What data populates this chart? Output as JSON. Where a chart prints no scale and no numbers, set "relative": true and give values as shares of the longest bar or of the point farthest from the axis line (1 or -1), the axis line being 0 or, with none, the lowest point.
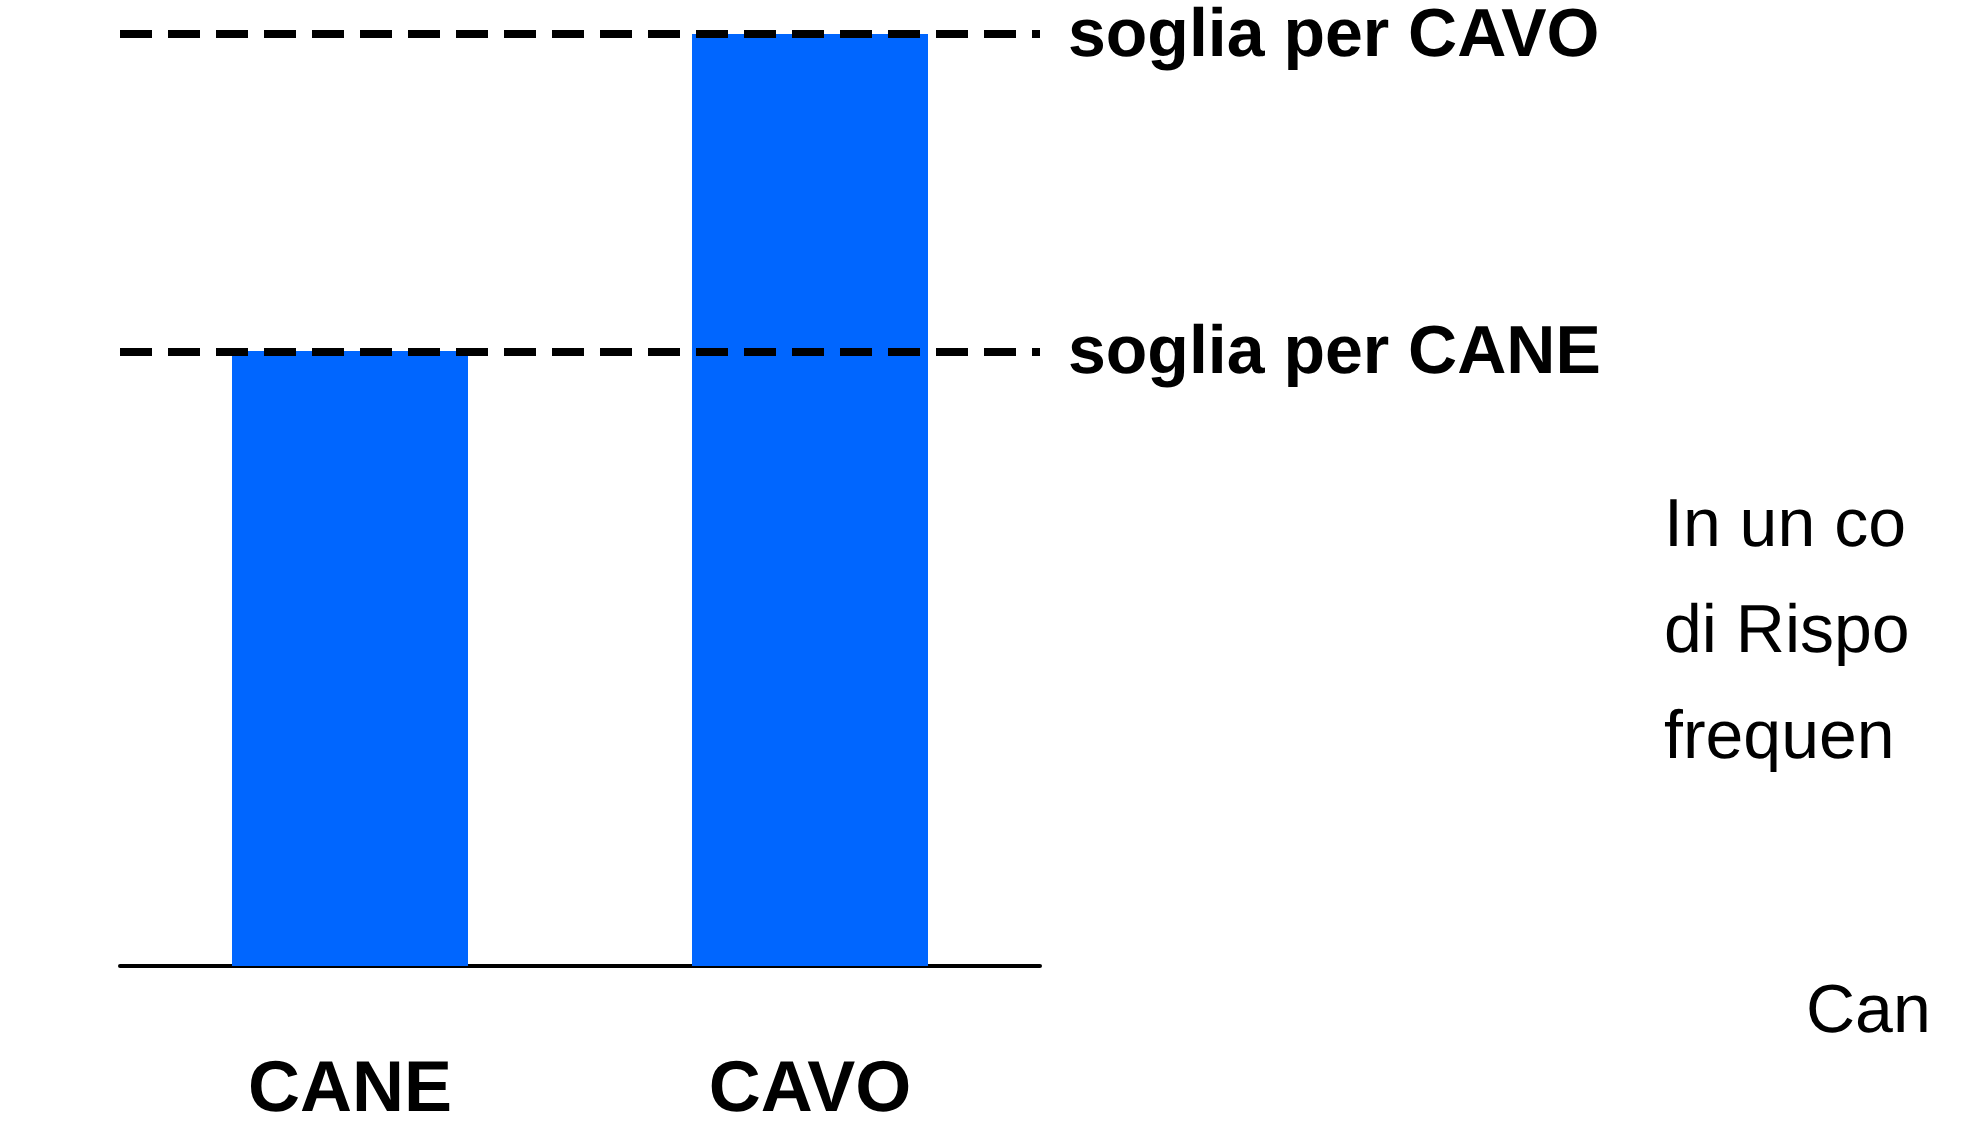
{
  "chart_data": {
    "type": "bar",
    "relative": true,
    "categories": [
      "CANE",
      "CAVO"
    ],
    "values": [
      0.66,
      1
    ],
    "color": "#0066ff",
    "ref_lines": [
      {
        "axis": "y",
        "value": 1,
        "label": "soglia per CAVO",
        "color": "#000000",
        "line_style": "dashed"
      },
      {
        "axis": "y",
        "value": 0.66,
        "label": "soglia per CANE",
        "color": "#000000",
        "line_style": "dashed"
      }
    ],
    "annotations": [
      "In un co",
      "di Rispo",
      "frequen",
      "Can"
    ]
  }
}
